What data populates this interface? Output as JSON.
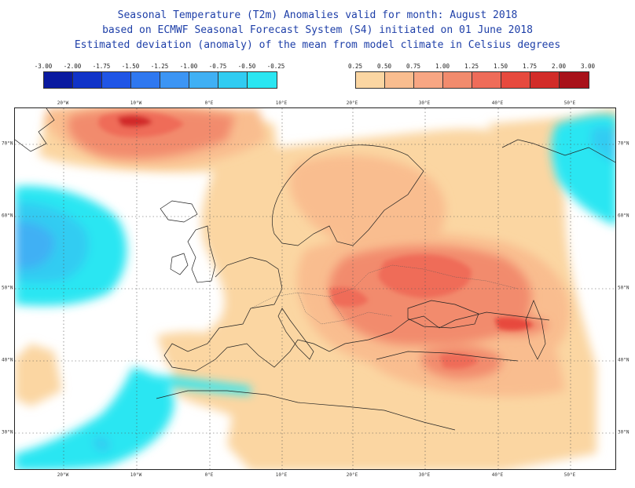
{
  "title": {
    "line1": "Seasonal Temperature (T2m) Anomalies valid for month: August 2018",
    "line2": "based on ECMWF Seasonal Forecast System (S4) initiated on 01 June 2018",
    "line3": "Estimated deviation (anomaly) of the mean from model climate in Celsius degrees"
  },
  "legend_cold": {
    "labels": [
      "-3.00",
      "-2.00",
      "-1.75",
      "-1.50",
      "-1.25",
      "-1.00",
      "-0.75",
      "-0.50",
      "-0.25"
    ],
    "colors": [
      "#0a1aa0",
      "#1033c8",
      "#1f55e6",
      "#2f78f0",
      "#3c95f4",
      "#40b0f4",
      "#30ccf2",
      "#2ae6f2"
    ]
  },
  "legend_warm": {
    "labels": [
      "0.25",
      "0.50",
      "0.75",
      "1.00",
      "1.25",
      "1.50",
      "1.75",
      "2.00",
      "3.00"
    ],
    "colors": [
      "#fbd6a2",
      "#f9bd8f",
      "#f8a683",
      "#f28b6d",
      "#ef6c59",
      "#e74a3e",
      "#d22c29",
      "#a8121a"
    ]
  },
  "axis_labels": {
    "longitude": [
      "20°W",
      "10°W",
      "0°E",
      "10°E",
      "20°E",
      "30°E",
      "40°E",
      "50°E"
    ],
    "latitude": [
      "70°N",
      "60°N",
      "50°N",
      "40°N",
      "30°N"
    ]
  }
}
